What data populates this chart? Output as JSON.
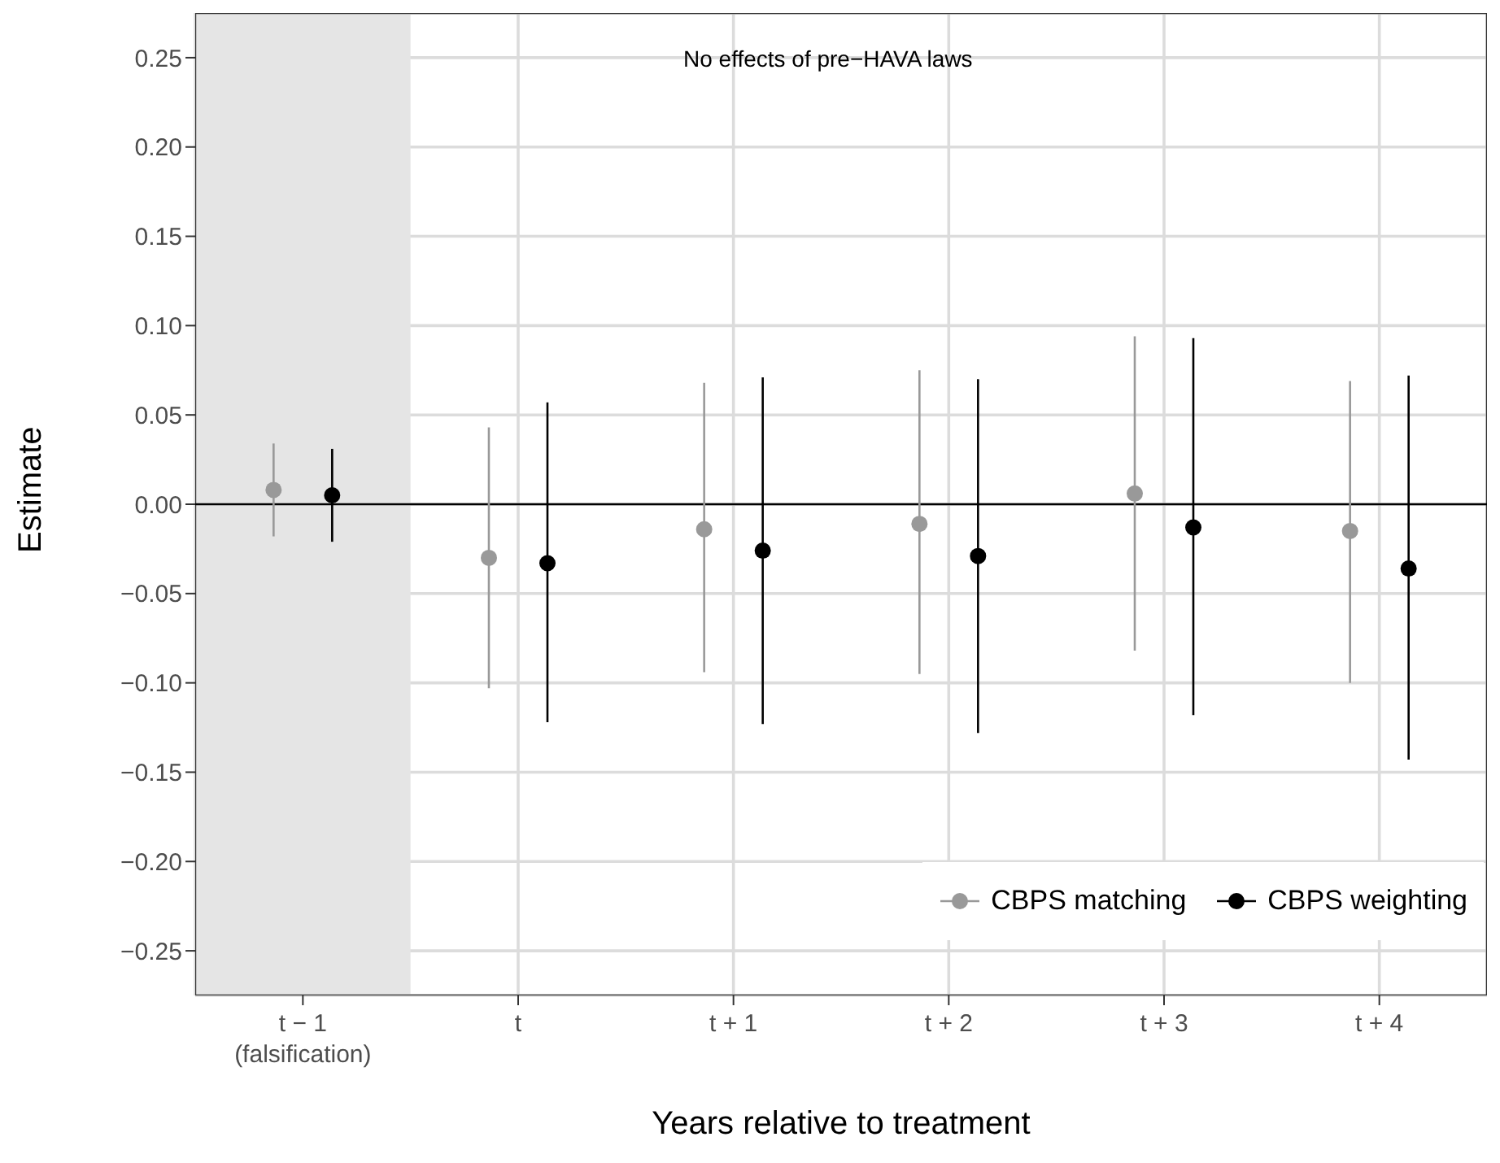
{
  "chart_data": {
    "type": "scatter",
    "xlabel": "Years relative to treatment",
    "ylabel": "Estimate",
    "categories": [
      "t − 1\n(falsification)",
      "t",
      "t + 1",
      "t + 2",
      "t + 3",
      "t + 4"
    ],
    "series": [
      {
        "name": "CBPS matching",
        "color": "#999999",
        "values": [
          0.008,
          -0.03,
          -0.014,
          -0.011,
          0.006,
          -0.015
        ],
        "errors": [
          [
            -0.018,
            0.034
          ],
          [
            -0.103,
            0.043
          ],
          [
            -0.094,
            0.068
          ],
          [
            -0.095,
            0.075
          ],
          [
            -0.082,
            0.094
          ],
          [
            -0.1,
            0.069
          ]
        ]
      },
      {
        "name": "CBPS weighting",
        "color": "#000000",
        "values": [
          0.005,
          -0.033,
          -0.026,
          -0.029,
          -0.013,
          -0.036
        ],
        "errors": [
          [
            -0.021,
            0.031
          ],
          [
            -0.122,
            0.057
          ],
          [
            -0.123,
            0.071
          ],
          [
            -0.128,
            0.07
          ],
          [
            -0.118,
            0.093
          ],
          [
            -0.143,
            0.072
          ]
        ]
      }
    ],
    "ylim": [
      -0.275,
      0.275
    ],
    "yticks": [
      {
        "value": 0.25,
        "label": "0.25"
      },
      {
        "value": 0.2,
        "label": "0.20"
      },
      {
        "value": 0.15,
        "label": "0.15"
      },
      {
        "value": 0.1,
        "label": "0.10"
      },
      {
        "value": 0.05,
        "label": "0.05"
      },
      {
        "value": 0,
        "label": "0.00"
      },
      {
        "value": -0.05,
        "label": "−0.05"
      },
      {
        "value": -0.1,
        "label": "−0.10"
      },
      {
        "value": -0.15,
        "label": "−0.15"
      },
      {
        "value": -0.2,
        "label": "−0.20"
      },
      {
        "value": -0.25,
        "label": "−0.25"
      }
    ],
    "ref_lines": [
      {
        "axis": "y",
        "value": 0,
        "color": "#000000"
      }
    ],
    "bands": [
      {
        "axis": "x",
        "from": "t − 1\n(falsification)",
        "to": "t − 1\n(falsification)",
        "color": "#e5e5e5"
      }
    ],
    "annotations": [
      "No effects of pre−HAVA laws"
    ],
    "grid": true,
    "legend": "bottom right",
    "marker": "circle"
  }
}
